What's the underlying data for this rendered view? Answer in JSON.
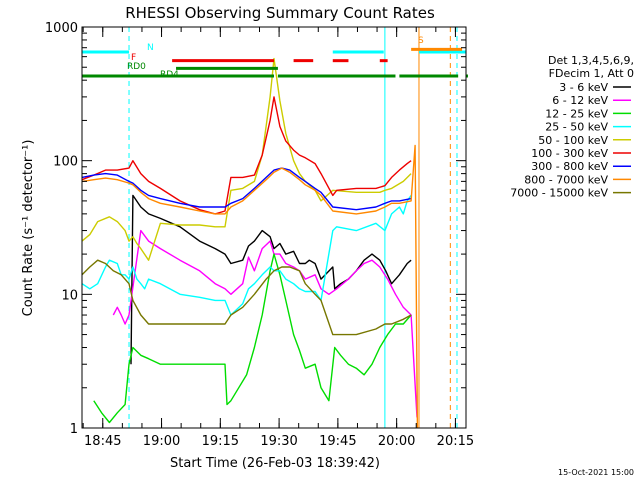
{
  "chart_data": {
    "type": "line",
    "title": "RHESSI Observing Summary Count Rates",
    "xlabel": "Start Time (26-Feb-03 18:39:42)",
    "ylabel": "Count Rate (s⁻¹ detector⁻¹)",
    "y_scale": "log",
    "ylim": [
      1,
      1000
    ],
    "y_ticks": [
      1,
      10,
      100,
      1000
    ],
    "y_tick_labels": [
      "1",
      "10",
      "100",
      "1000"
    ],
    "xlim_minutes": [
      0,
      98
    ],
    "x_ticks_minutes": [
      5.3,
      20.3,
      35.3,
      50.3,
      65.3,
      80.3,
      95.3
    ],
    "x_tick_labels": [
      "18:45",
      "19:00",
      "19:15",
      "19:30",
      "19:45",
      "20:00",
      "20:15"
    ],
    "timestamp": "15-Oct-2021 15:00",
    "legend": {
      "header": [
        "Det 1,3,4,5,6,9,",
        "FDecim 1, Att 0"
      ],
      "position": "right",
      "entries": [
        {
          "label": "3 - 6 keV",
          "color": "#000000"
        },
        {
          "label": "6 - 12 keV",
          "color": "#ff00ff"
        },
        {
          "label": "12 - 25 keV",
          "color": "#00dd00"
        },
        {
          "label": "25 - 50 keV",
          "color": "#00ffff"
        },
        {
          "label": "50 - 100 keV",
          "color": "#cccc00"
        },
        {
          "label": "100 - 300 keV",
          "color": "#ee0000"
        },
        {
          "label": "300 - 800 keV",
          "color": "#0000ff"
        },
        {
          "label": "800 - 7000 keV",
          "color": "#ff8800"
        },
        {
          "label": "7000 - 15000 keV",
          "color": "#777700"
        }
      ]
    },
    "flags": [
      {
        "label": "N",
        "color": "#00ffff",
        "level": 650,
        "segments": [
          [
            0,
            12
          ],
          [
            64,
            77
          ],
          [
            86,
            98
          ]
        ]
      },
      {
        "label": "F",
        "color": "#ee0000",
        "level": 560,
        "segments": [
          [
            23,
            49
          ],
          [
            54,
            59
          ],
          [
            64,
            68
          ],
          [
            76,
            78
          ]
        ]
      },
      {
        "label": "RD0",
        "color": "#008800",
        "level": 490,
        "segments": [
          [
            24,
            50
          ]
        ]
      },
      {
        "label": "RD4",
        "color": "#008800",
        "level": 430,
        "segments": [
          [
            0,
            49
          ],
          [
            50,
            80
          ],
          [
            81,
            96
          ],
          [
            98,
            98
          ]
        ]
      },
      {
        "label": "S",
        "color": "#ff8800",
        "level": 680,
        "segments": [
          [
            84,
            97
          ]
        ]
      }
    ],
    "vlines": [
      {
        "t": 12.0,
        "color": "#00ffff",
        "style": "dashed"
      },
      {
        "t": 77.3,
        "color": "#00ffff",
        "style": "solid"
      },
      {
        "t": 86.0,
        "color": "#ff8800",
        "style": "solid"
      },
      {
        "t": 94.0,
        "color": "#ff8800",
        "style": "dashed"
      },
      {
        "t": 95.7,
        "color": "#00ffff",
        "style": "dashed"
      }
    ],
    "series": [
      {
        "name": "3 - 6 keV",
        "color": "#000000",
        "t": [
          12.5,
          13,
          15,
          17,
          20,
          25,
          30,
          34,
          36.5,
          38,
          41,
          42.5,
          44,
          46,
          48,
          49,
          50.5,
          52,
          54,
          55.5,
          57,
          58,
          59.5,
          61,
          64,
          64.5,
          66,
          68,
          70,
          72,
          74,
          76,
          77.5,
          79,
          81,
          83,
          84
        ],
        "v": [
          3,
          55,
          45,
          40,
          37,
          32,
          25,
          22,
          20,
          17,
          18,
          23,
          25,
          30,
          27,
          22,
          24,
          20,
          21,
          17,
          17,
          18,
          17,
          13,
          16,
          11,
          12,
          13,
          15,
          18,
          20,
          18,
          15,
          12,
          14,
          17,
          18
        ]
      },
      {
        "name": "6 - 12 keV",
        "color": "#ff00ff",
        "t": [
          8,
          9,
          10,
          11,
          12,
          15,
          17,
          20,
          25,
          30,
          34,
          36.5,
          38,
          41,
          42.5,
          44,
          46,
          48,
          49,
          50.5,
          52,
          54,
          55.5,
          57,
          59.5,
          61,
          63,
          65,
          68,
          70,
          72,
          74,
          76,
          78,
          80,
          82,
          84,
          85.5
        ],
        "v": [
          7,
          8,
          7,
          6,
          7,
          30,
          25,
          22,
          18,
          15,
          12,
          11,
          10,
          12,
          19,
          15,
          22,
          25,
          20,
          20,
          17,
          16,
          15,
          13,
          14,
          11,
          10,
          11,
          13,
          15,
          17,
          18,
          16,
          13,
          10,
          8,
          7,
          1.2
        ]
      },
      {
        "name": "12 - 25 keV",
        "color": "#00dd00",
        "t": [
          3,
          5,
          7,
          9,
          11,
          12,
          13,
          15,
          17,
          20,
          25,
          30,
          34,
          36.5,
          37,
          38,
          40,
          42,
          44,
          46,
          48,
          49,
          50.5,
          52,
          54,
          55.5,
          57,
          59.5,
          61,
          63,
          64.5,
          66,
          68,
          70,
          72,
          74,
          76,
          78,
          80,
          82,
          84
        ],
        "v": [
          1.6,
          1.3,
          1.1,
          1.3,
          1.5,
          3,
          4,
          3.5,
          3.3,
          3,
          3,
          3,
          3,
          3,
          1.5,
          1.6,
          2,
          2.5,
          4,
          7,
          15,
          20,
          14,
          9,
          5,
          3.8,
          2.8,
          3,
          2,
          1.6,
          4,
          3.5,
          3,
          2.8,
          2.5,
          3,
          4,
          5,
          6,
          6,
          7
        ]
      },
      {
        "name": "25 - 50 keV",
        "color": "#00ffff",
        "t": [
          0,
          2,
          4,
          6,
          7,
          9,
          10,
          11,
          12,
          13,
          14,
          15,
          16,
          17,
          20,
          25,
          30,
          34,
          36.5,
          38,
          41,
          42.5,
          44,
          46,
          48,
          49,
          50.5,
          52,
          54,
          55.5,
          57,
          59.5,
          61,
          64,
          65,
          70,
          75,
          77.3,
          79,
          81,
          82,
          83,
          84
        ],
        "v": [
          12,
          11,
          12,
          16,
          18,
          17,
          14,
          14,
          13,
          16,
          13,
          12,
          11,
          13,
          12,
          10,
          9.5,
          9,
          9,
          7,
          8.5,
          11,
          12,
          14,
          16,
          15,
          15,
          13,
          12,
          11,
          10.5,
          10.5,
          9,
          30,
          32,
          30,
          34,
          30,
          40,
          45,
          40,
          50,
          55
        ]
      },
      {
        "name": "50 - 100 keV",
        "color": "#cccc00",
        "t": [
          0,
          2,
          4,
          7,
          9,
          11,
          12,
          13,
          14,
          15,
          17,
          20,
          25,
          30,
          34,
          36.5,
          38,
          41,
          44,
          46,
          48,
          49,
          50.5,
          52,
          54,
          55.5,
          57,
          59.5,
          61,
          64,
          70,
          76,
          77.3,
          79,
          82,
          84
        ],
        "v": [
          25,
          28,
          35,
          38,
          35,
          30,
          25,
          27,
          24,
          22,
          18,
          34,
          33,
          33,
          32,
          32,
          60,
          62,
          70,
          110,
          300,
          580,
          280,
          160,
          100,
          80,
          70,
          60,
          50,
          60,
          58,
          58,
          60,
          62,
          70,
          80
        ]
      },
      {
        "name": "100 - 300 keV",
        "color": "#ee0000",
        "t": [
          0,
          3,
          6,
          9,
          12,
          13,
          15,
          17,
          20,
          25,
          30,
          34,
          36.5,
          38,
          41,
          44,
          46,
          48,
          49,
          50.5,
          52,
          54,
          55.5,
          57,
          59.5,
          61,
          64,
          65,
          70,
          75,
          77.3,
          79,
          81,
          83,
          84
        ],
        "v": [
          72,
          78,
          85,
          85,
          88,
          100,
          80,
          70,
          62,
          50,
          43,
          40,
          42,
          75,
          75,
          78,
          110,
          200,
          300,
          180,
          140,
          120,
          110,
          105,
          95,
          80,
          55,
          60,
          62,
          62,
          65,
          75,
          85,
          95,
          100
        ]
      },
      {
        "name": "300 - 800 keV",
        "color": "#0000ff",
        "t": [
          0,
          3,
          6,
          9,
          12,
          13,
          15,
          17,
          20,
          25,
          30,
          34,
          36.5,
          38,
          41,
          44,
          47,
          49,
          51,
          53,
          55.5,
          57,
          59.5,
          61,
          64,
          70,
          75,
          77.3,
          79,
          81,
          84
        ],
        "v": [
          75,
          78,
          80,
          78,
          70,
          68,
          60,
          55,
          52,
          48,
          45,
          45,
          45,
          48,
          52,
          62,
          75,
          85,
          88,
          85,
          75,
          70,
          62,
          58,
          45,
          43,
          45,
          48,
          50,
          50,
          52
        ]
      },
      {
        "name": "800 - 7000 keV",
        "color": "#ff8800",
        "t": [
          0,
          3,
          6,
          9,
          12,
          13,
          15,
          17,
          20,
          25,
          30,
          34,
          36.5,
          38,
          41,
          44,
          47,
          49,
          51,
          53,
          55.5,
          57,
          59.5,
          61,
          64,
          70,
          75,
          77.3,
          79,
          81,
          84,
          85,
          85.6
        ],
        "v": [
          70,
          72,
          74,
          72,
          68,
          66,
          58,
          52,
          48,
          45,
          42,
          40,
          40,
          45,
          50,
          60,
          72,
          82,
          88,
          82,
          72,
          66,
          60,
          55,
          42,
          40,
          42,
          45,
          48,
          48,
          50,
          130,
          1
        ]
      },
      {
        "name": "7000 - 15000 keV",
        "color": "#777700",
        "t": [
          0,
          2,
          4,
          6,
          8,
          10,
          12,
          13,
          15,
          17,
          20,
          25,
          30,
          34,
          36.5,
          38,
          41,
          44,
          47,
          49,
          51,
          53,
          55.5,
          57,
          59.5,
          61,
          64,
          70,
          75,
          77.3,
          79,
          82,
          84
        ],
        "v": [
          14,
          16,
          18,
          17,
          15,
          14,
          12,
          9,
          7,
          6,
          6,
          6,
          6,
          6,
          6,
          7,
          8,
          10,
          13,
          15,
          16,
          16,
          15,
          12,
          10,
          9,
          5,
          5,
          5.5,
          6,
          6,
          6.5,
          7
        ]
      }
    ]
  }
}
